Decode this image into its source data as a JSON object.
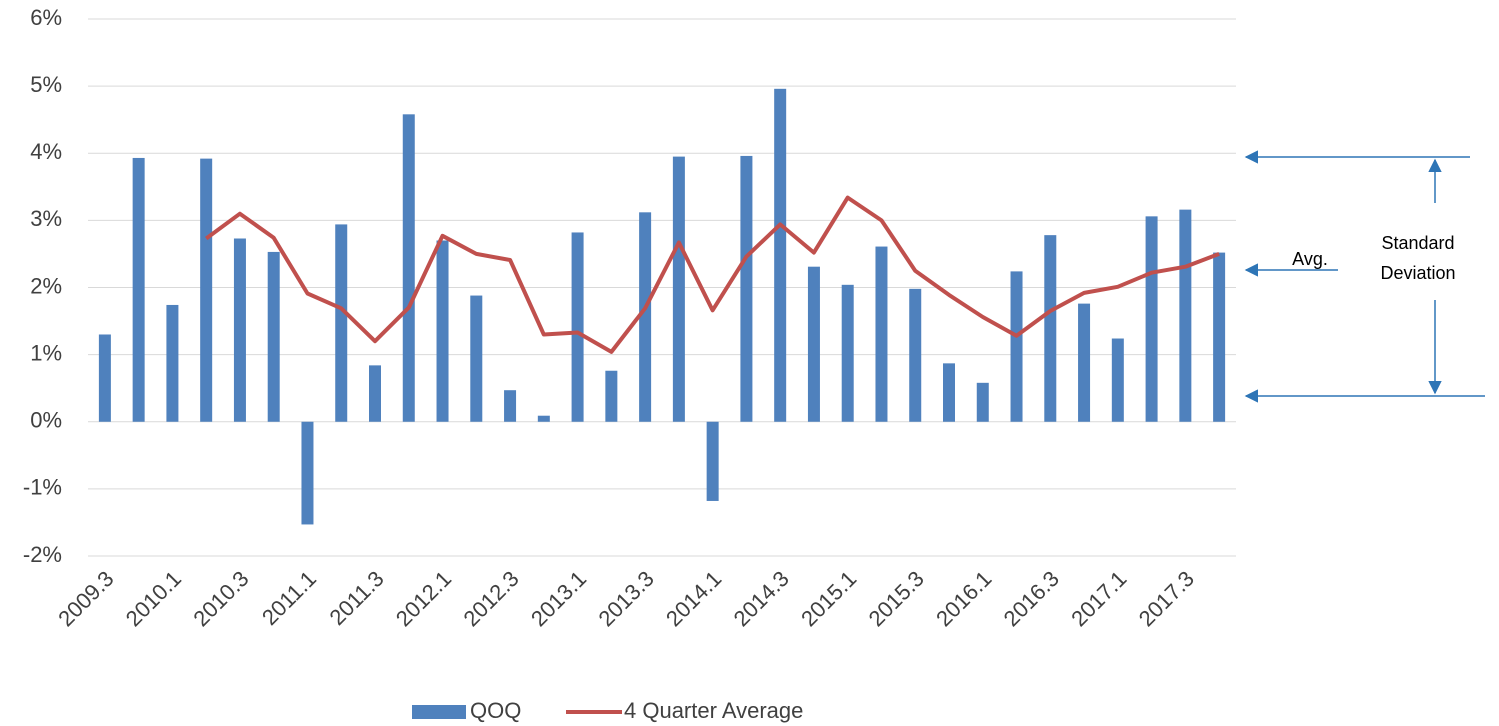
{
  "chart_data": {
    "type": "bar_line",
    "categories": [
      "2009.3",
      null,
      "2010.1",
      null,
      "2010.3",
      null,
      "2011.1",
      null,
      "2011.3",
      null,
      "2012.1",
      null,
      "2012.3",
      null,
      "2013.1",
      null,
      "2013.3",
      null,
      "2014.1",
      null,
      "2014.3",
      null,
      "2015.1",
      null,
      "2015.3",
      null,
      "2016.1",
      null,
      "2016.3",
      null,
      "2017.1",
      null,
      "2017.3",
      null
    ],
    "series": [
      {
        "name": "QOQ",
        "type": "bar",
        "color": "#4f81bd",
        "values": [
          1.3,
          3.93,
          1.74,
          3.92,
          2.73,
          2.53,
          -1.53,
          2.94,
          0.84,
          4.58,
          2.7,
          1.88,
          0.47,
          0.09,
          2.82,
          0.76,
          3.12,
          3.95,
          -1.18,
          3.96,
          4.96,
          2.31,
          2.04,
          2.61,
          1.98,
          0.87,
          0.58,
          2.24,
          2.78,
          1.76,
          1.24,
          3.06,
          3.16,
          2.52
        ]
      },
      {
        "name": "4 Quarter Average",
        "type": "line",
        "color": "#c0504d",
        "values": [
          null,
          null,
          null,
          2.73,
          3.1,
          2.74,
          1.91,
          1.69,
          1.2,
          1.7,
          2.77,
          2.5,
          2.41,
          1.3,
          1.33,
          1.04,
          1.69,
          2.67,
          1.66,
          2.46,
          2.94,
          2.52,
          3.34,
          3.0,
          2.25,
          1.89,
          1.56,
          1.28,
          1.65,
          1.92,
          2.01,
          2.22,
          2.31,
          2.5
        ]
      }
    ],
    "ylim": [
      -2,
      6
    ],
    "yticks": [
      {
        "value": -2,
        "label": "-2%"
      },
      {
        "value": -1,
        "label": "-1%"
      },
      {
        "value": 0,
        "label": "0%"
      },
      {
        "value": 1,
        "label": "1%"
      },
      {
        "value": 2,
        "label": "2%"
      },
      {
        "value": 3,
        "label": "3%"
      },
      {
        "value": 4,
        "label": "4%"
      },
      {
        "value": 5,
        "label": "5%"
      },
      {
        "value": 6,
        "label": "6%"
      }
    ],
    "grid": true,
    "legend": "bottom",
    "annotations": {
      "avg": "Avg.",
      "std_dev": [
        "Standard",
        "Deviation"
      ]
    }
  }
}
